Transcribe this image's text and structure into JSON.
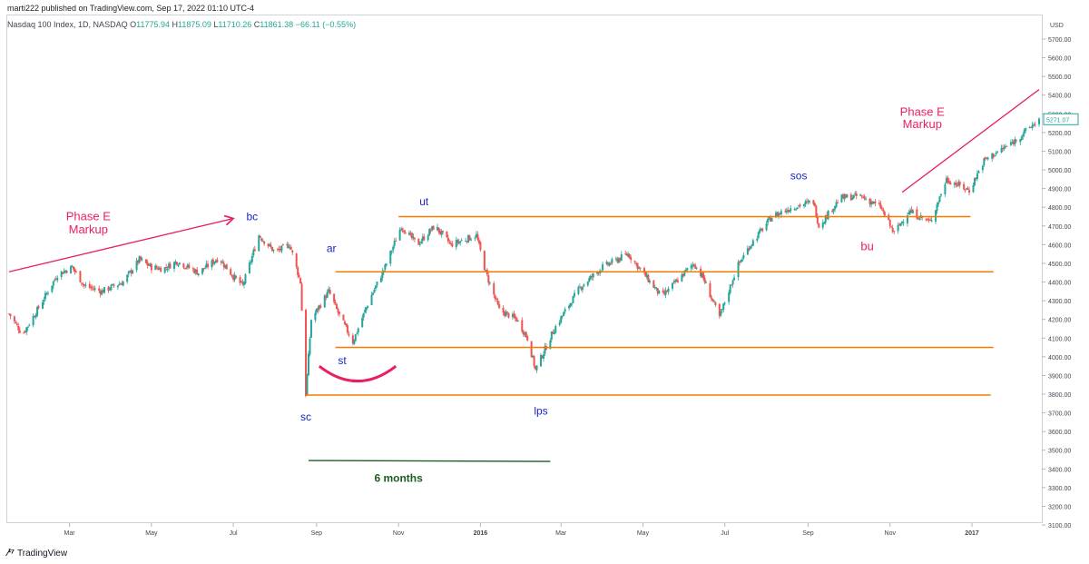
{
  "header": {
    "published": "marti222 published on TradingView.com, Sep 17, 2022 01:10 UTC-4",
    "symbol": "Nasdaq 100 Index, 1D, NASDAQ",
    "open_label": "O",
    "open": "11775.94",
    "high_label": "H",
    "high": "11875.09",
    "low_label": "L",
    "low": "11710.26",
    "close_label": "C",
    "close": "11861.38",
    "change": "−66.11 (−0.55%)"
  },
  "footer": {
    "brand": "TradingView"
  },
  "colors": {
    "up": "#26a69a",
    "down": "#ef5350",
    "level": "#f57c00",
    "phase": "#e91e63",
    "label": "#1a23c9",
    "duration": "#1b5e20"
  },
  "chart_data": {
    "type": "candlestick",
    "currency": "USD",
    "last_price": "5271.07",
    "ylim": [
      3100,
      5800
    ],
    "y_ticks": [
      "5700.00",
      "5600.00",
      "5500.00",
      "5400.00",
      "5300.00",
      "5200.00",
      "5100.00",
      "5000.00",
      "4900.00",
      "4800.00",
      "4700.00",
      "4600.00",
      "4500.00",
      "4400.00",
      "4300.00",
      "4200.00",
      "4100.00",
      "4000.00",
      "3900.00",
      "3800.00",
      "3700.00",
      "3600.00",
      "3500.00",
      "3400.00",
      "3300.00",
      "3200.00",
      "3100.00"
    ],
    "x_ticks": [
      {
        "label": "Mar",
        "date": "2015-03-01"
      },
      {
        "label": "May",
        "date": "2015-05-01"
      },
      {
        "label": "Jul",
        "date": "2015-07-01"
      },
      {
        "label": "Sep",
        "date": "2015-09-01"
      },
      {
        "label": "Nov",
        "date": "2015-11-01"
      },
      {
        "label": "2016",
        "date": "2016-01-01",
        "bold": true
      },
      {
        "label": "Mar",
        "date": "2016-03-01"
      },
      {
        "label": "May",
        "date": "2016-05-01"
      },
      {
        "label": "Jul",
        "date": "2016-07-01"
      },
      {
        "label": "Sep",
        "date": "2016-09-01"
      },
      {
        "label": "Nov",
        "date": "2016-11-01"
      },
      {
        "label": "2017",
        "date": "2017-01-01",
        "bold": true
      }
    ],
    "price_path": [
      [
        "2015-01-15",
        4230
      ],
      [
        "2015-01-25",
        4120
      ],
      [
        "2015-02-05",
        4250
      ],
      [
        "2015-02-20",
        4440
      ],
      [
        "2015-03-03",
        4480
      ],
      [
        "2015-03-12",
        4380
      ],
      [
        "2015-03-25",
        4350
      ],
      [
        "2015-04-10",
        4400
      ],
      [
        "2015-04-22",
        4520
      ],
      [
        "2015-05-01",
        4480
      ],
      [
        "2015-05-10",
        4470
      ],
      [
        "2015-05-20",
        4510
      ],
      [
        "2015-06-05",
        4450
      ],
      [
        "2015-06-20",
        4530
      ],
      [
        "2015-07-01",
        4430
      ],
      [
        "2015-07-08",
        4380
      ],
      [
        "2015-07-20",
        4650
      ],
      [
        "2015-08-01",
        4560
      ],
      [
        "2015-08-12",
        4600
      ],
      [
        "2015-08-20",
        4400
      ],
      [
        "2015-08-24",
        3800
      ],
      [
        "2015-08-28",
        4200
      ],
      [
        "2015-09-10",
        4350
      ],
      [
        "2015-09-18",
        4220
      ],
      [
        "2015-09-28",
        4080
      ],
      [
        "2015-10-10",
        4300
      ],
      [
        "2015-10-22",
        4480
      ],
      [
        "2015-11-03",
        4700
      ],
      [
        "2015-11-15",
        4600
      ],
      [
        "2015-11-28",
        4700
      ],
      [
        "2015-12-10",
        4600
      ],
      [
        "2015-12-29",
        4650
      ],
      [
        "2016-01-05",
        4450
      ],
      [
        "2016-01-15",
        4250
      ],
      [
        "2016-01-28",
        4200
      ],
      [
        "2016-02-05",
        4100
      ],
      [
        "2016-02-11",
        3930
      ],
      [
        "2016-02-25",
        4150
      ],
      [
        "2016-03-15",
        4370
      ],
      [
        "2016-04-01",
        4480
      ],
      [
        "2016-04-20",
        4550
      ],
      [
        "2016-05-01",
        4450
      ],
      [
        "2016-05-15",
        4320
      ],
      [
        "2016-06-01",
        4450
      ],
      [
        "2016-06-08",
        4500
      ],
      [
        "2016-06-15",
        4420
      ],
      [
        "2016-06-27",
        4210
      ],
      [
        "2016-07-10",
        4480
      ],
      [
        "2016-07-20",
        4600
      ],
      [
        "2016-08-05",
        4750
      ],
      [
        "2016-08-20",
        4800
      ],
      [
        "2016-09-05",
        4830
      ],
      [
        "2016-09-09",
        4700
      ],
      [
        "2016-09-25",
        4850
      ],
      [
        "2016-10-10",
        4860
      ],
      [
        "2016-10-25",
        4800
      ],
      [
        "2016-11-04",
        4660
      ],
      [
        "2016-11-15",
        4780
      ],
      [
        "2016-12-01",
        4720
      ],
      [
        "2016-12-13",
        4950
      ],
      [
        "2016-12-30",
        4890
      ],
      [
        "2017-01-10",
        5050
      ],
      [
        "2017-02-01",
        5150
      ],
      [
        "2017-02-20",
        5271
      ]
    ],
    "lines": [
      {
        "kind": "trend",
        "from": [
          "2015-01-15",
          4455
        ],
        "to": [
          "2015-07-01",
          4740
        ],
        "arrow": true
      },
      {
        "kind": "trend",
        "from": [
          "2016-11-10",
          4880
        ],
        "to": [
          "2017-02-20",
          5430
        ],
        "arrow": false
      },
      {
        "kind": "level",
        "from": [
          "2015-11-01",
          4750
        ],
        "to": [
          "2016-12-31",
          4750
        ]
      },
      {
        "kind": "level",
        "from": [
          "2015-09-15",
          4455
        ],
        "to": [
          "2017-01-17",
          4455
        ]
      },
      {
        "kind": "level",
        "from": [
          "2015-09-15",
          4050
        ],
        "to": [
          "2017-01-17",
          4050
        ]
      },
      {
        "kind": "level",
        "from": [
          "2015-08-24",
          3795
        ],
        "to": [
          "2017-01-15",
          3795
        ]
      },
      {
        "kind": "duration",
        "from": [
          "2015-08-26",
          3445
        ],
        "to": [
          "2016-02-22",
          3440
        ]
      },
      {
        "kind": "arc",
        "from": [
          "2015-09-03",
          3950
        ],
        "to": [
          "2015-10-30",
          3950
        ],
        "depth": 3870
      }
    ],
    "annotations": [
      {
        "text": "Phase E",
        "date": "2015-03-15",
        "price": 4730,
        "color": "phase"
      },
      {
        "text": "Markup",
        "date": "2015-03-15",
        "price": 4660,
        "color": "phase"
      },
      {
        "text": "bc",
        "date": "2015-07-15",
        "price": 4730,
        "color": "label"
      },
      {
        "text": "ut",
        "date": "2015-11-20",
        "price": 4810,
        "color": "label"
      },
      {
        "text": "ar",
        "date": "2015-09-12",
        "price": 4560,
        "color": "label"
      },
      {
        "text": "st",
        "date": "2015-09-20",
        "price": 3960,
        "color": "label"
      },
      {
        "text": "sc",
        "date": "2015-08-24",
        "price": 3660,
        "color": "label"
      },
      {
        "text": "lps",
        "date": "2016-02-15",
        "price": 3690,
        "color": "label"
      },
      {
        "text": "6 months",
        "date": "2015-11-01",
        "price": 3330,
        "color": "duration"
      },
      {
        "text": "sos",
        "date": "2016-08-25",
        "price": 4950,
        "color": "label"
      },
      {
        "text": "bu",
        "date": "2016-10-15",
        "price": 4570,
        "color": "phase"
      },
      {
        "text": "Phase E",
        "date": "2016-11-25",
        "price": 5290,
        "color": "phase"
      },
      {
        "text": "Markup",
        "date": "2016-11-25",
        "price": 5225,
        "color": "phase"
      }
    ]
  }
}
